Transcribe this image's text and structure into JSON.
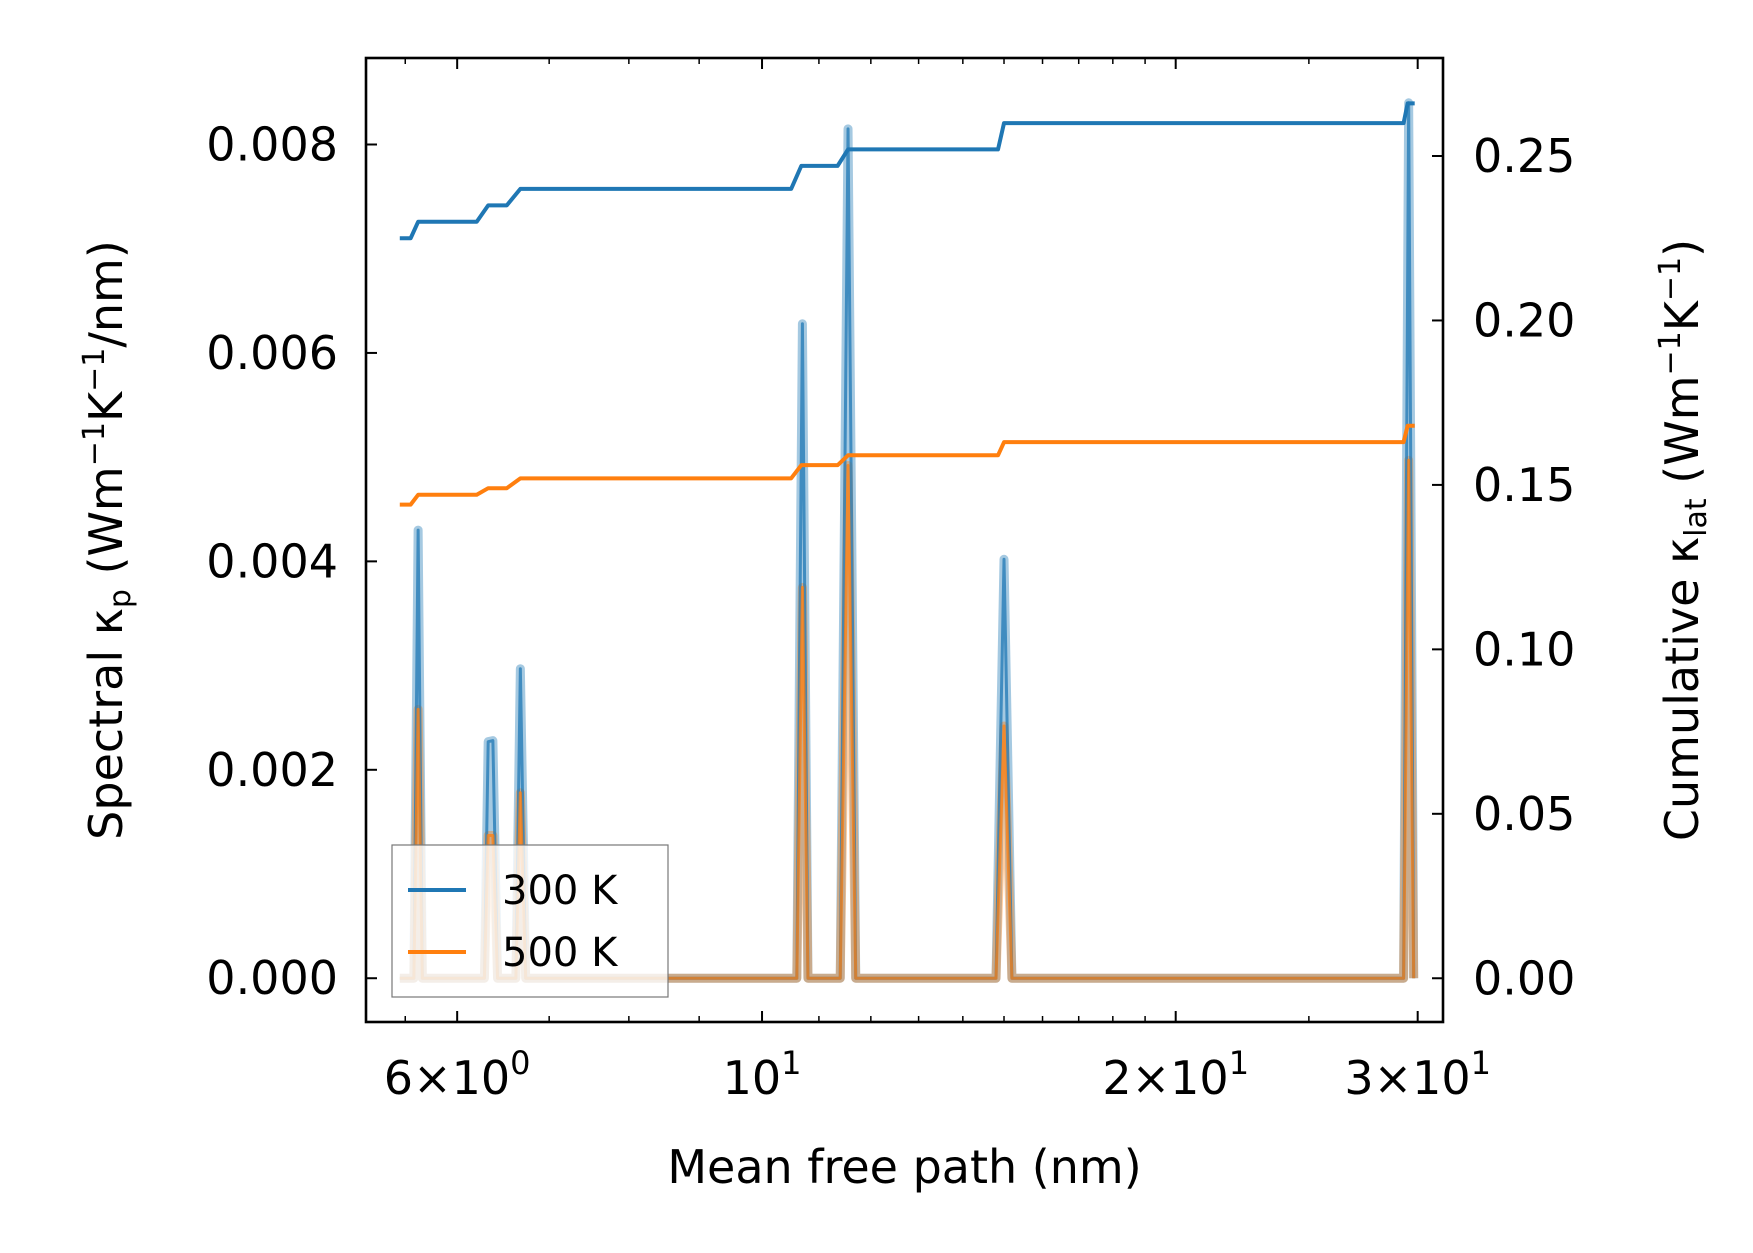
{
  "chart_data": {
    "type": "line",
    "x_scale": "log",
    "xlim": [
      5.15,
      31.3
    ],
    "ylim_left": [
      -0.00042,
      0.00883
    ],
    "ylim_right": [
      -0.0133,
      0.2798
    ],
    "xlabel": "Mean free path (nm)",
    "ylabel_left": {
      "prefix": "Spectral κ",
      "sub": "p",
      "units_open": " (Wm",
      "sup1": "−1",
      "mid": "K",
      "sup2": "−1",
      "units_close": "/nm)"
    },
    "ylabel_right": {
      "prefix": "Cumulative κ",
      "sub": "lat",
      "units_open": " (Wm",
      "sup1": "−1",
      "mid": "K",
      "sup2": "−1",
      "units_close": ")"
    },
    "x_ticks": [
      {
        "value": 6,
        "mantissa": "6",
        "times": "×",
        "base": "10",
        "exp": "0"
      },
      {
        "value": 10,
        "mantissa": "",
        "times": "",
        "base": "10",
        "exp": "1"
      },
      {
        "value": 20,
        "mantissa": "2",
        "times": "×",
        "base": "10",
        "exp": "1"
      },
      {
        "value": 30,
        "mantissa": "3",
        "times": "×",
        "base": "10",
        "exp": "1"
      }
    ],
    "x_minor_ticks": [
      5.5,
      7,
      8,
      9,
      11,
      12,
      13,
      14,
      15,
      16,
      17,
      18,
      19,
      25
    ],
    "y_left_ticks": [
      {
        "value": 0.0,
        "label": "0.000"
      },
      {
        "value": 0.002,
        "label": "0.002"
      },
      {
        "value": 0.004,
        "label": "0.004"
      },
      {
        "value": 0.006,
        "label": "0.006"
      },
      {
        "value": 0.008,
        "label": "0.008"
      }
    ],
    "y_right_ticks": [
      {
        "value": 0.0,
        "label": "0.00"
      },
      {
        "value": 0.05,
        "label": "0.05"
      },
      {
        "value": 0.1,
        "label": "0.10"
      },
      {
        "value": 0.15,
        "label": "0.15"
      },
      {
        "value": 0.2,
        "label": "0.20"
      },
      {
        "value": 0.25,
        "label": "0.25"
      }
    ],
    "series": [
      {
        "name": "300 K",
        "color": "#1f77b4",
        "spectral": [
          [
            5.45,
            0
          ],
          [
            5.58,
            0
          ],
          [
            5.62,
            0.0043
          ],
          [
            5.66,
            0
          ],
          [
            6.28,
            0
          ],
          [
            6.32,
            0.00227
          ],
          [
            6.37,
            0.00228
          ],
          [
            6.42,
            0
          ],
          [
            6.62,
            0
          ],
          [
            6.67,
            0.00297
          ],
          [
            6.73,
            0
          ],
          [
            10.6,
            0
          ],
          [
            10.7,
            0.00628
          ],
          [
            10.8,
            0
          ],
          [
            11.4,
            0
          ],
          [
            11.55,
            0.00815
          ],
          [
            11.7,
            0
          ],
          [
            14.8,
            0
          ],
          [
            15.0,
            0.00402
          ],
          [
            15.2,
            0
          ],
          [
            29.3,
            0
          ],
          [
            29.55,
            0.0084
          ],
          [
            29.8,
            0
          ]
        ],
        "cumulative": [
          [
            5.45,
            0.225
          ],
          [
            5.55,
            0.225
          ],
          [
            5.62,
            0.23
          ],
          [
            6.2,
            0.23
          ],
          [
            6.32,
            0.235
          ],
          [
            6.52,
            0.235
          ],
          [
            6.67,
            0.24
          ],
          [
            6.8,
            0.24
          ],
          [
            10.5,
            0.24
          ],
          [
            10.68,
            0.247
          ],
          [
            11.35,
            0.247
          ],
          [
            11.55,
            0.252
          ],
          [
            14.85,
            0.252
          ],
          [
            15.0,
            0.26
          ],
          [
            29.3,
            0.26
          ],
          [
            29.5,
            0.266
          ],
          [
            29.85,
            0.266
          ]
        ]
      },
      {
        "name": "500 K",
        "color": "#ff7f0e",
        "spectral": [
          [
            5.45,
            0
          ],
          [
            5.58,
            0
          ],
          [
            5.62,
            0.00258
          ],
          [
            5.66,
            0
          ],
          [
            6.28,
            0
          ],
          [
            6.32,
            0.00137
          ],
          [
            6.37,
            0.00137
          ],
          [
            6.42,
            0
          ],
          [
            6.62,
            0
          ],
          [
            6.67,
            0.00178
          ],
          [
            6.73,
            0
          ],
          [
            10.6,
            0
          ],
          [
            10.7,
            0.00375
          ],
          [
            10.8,
            0
          ],
          [
            11.4,
            0
          ],
          [
            11.55,
            0.00492
          ],
          [
            11.7,
            0
          ],
          [
            14.8,
            0
          ],
          [
            15.0,
            0.00242
          ],
          [
            15.2,
            0
          ],
          [
            29.3,
            0
          ],
          [
            29.55,
            0.00497
          ],
          [
            29.8,
            0
          ]
        ],
        "cumulative": [
          [
            5.45,
            0.144
          ],
          [
            5.55,
            0.144
          ],
          [
            5.62,
            0.147
          ],
          [
            6.2,
            0.147
          ],
          [
            6.32,
            0.149
          ],
          [
            6.52,
            0.149
          ],
          [
            6.67,
            0.152
          ],
          [
            6.8,
            0.152
          ],
          [
            10.5,
            0.152
          ],
          [
            10.68,
            0.156
          ],
          [
            11.35,
            0.156
          ],
          [
            11.55,
            0.159
          ],
          [
            14.85,
            0.159
          ],
          [
            15.0,
            0.163
          ],
          [
            29.3,
            0.163
          ],
          [
            29.5,
            0.168
          ],
          [
            29.85,
            0.168
          ]
        ]
      }
    ],
    "legend": {
      "position": "lower-left",
      "entries": [
        "300 K",
        "500 K"
      ]
    }
  }
}
